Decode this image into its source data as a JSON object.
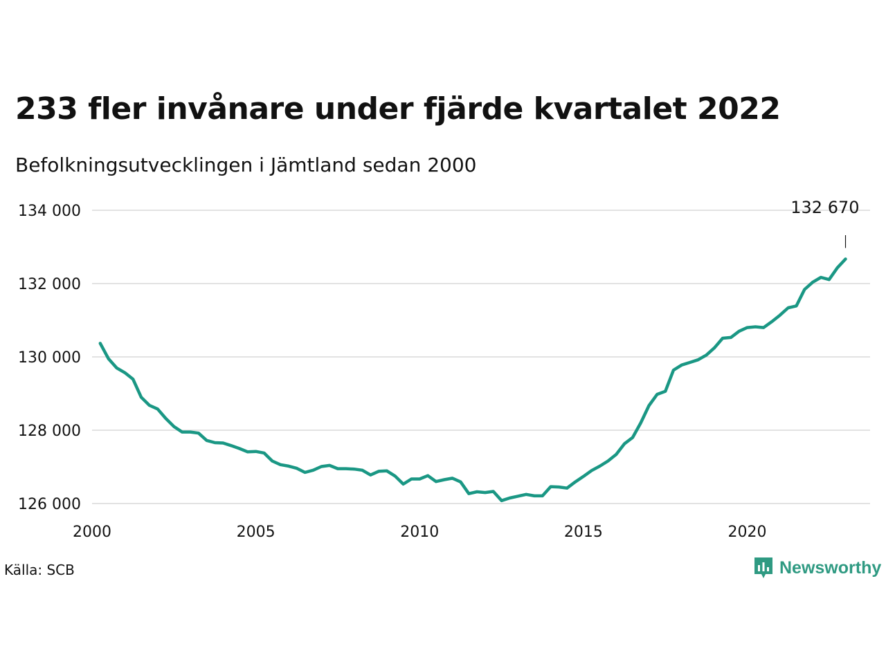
{
  "title": "233 fler invånare under fjärde kvartalet 2022",
  "subtitle": "Befolkningsutvecklingen i Jämtland sedan 2000",
  "source": "Källa: SCB",
  "brand": {
    "name": "Newsworthy",
    "icon": "newsworthy-logo-icon",
    "color": "#2f9a82"
  },
  "colors": {
    "line": "#1a9784",
    "grid": "#e2e2e2",
    "text": "#111111"
  },
  "chart_data": {
    "type": "line",
    "title": "233 fler invånare under fjärde kvartalet 2022",
    "subtitle": "Befolkningsutvecklingen i Jämtland sedan 2000",
    "xlabel": "",
    "ylabel": "",
    "xlim": [
      2000,
      2023.75
    ],
    "ylim": [
      126000,
      134000
    ],
    "grid": true,
    "x_ticks": [
      2000,
      2005,
      2010,
      2015,
      2020
    ],
    "x_tick_labels": [
      "2000",
      "2005",
      "2010",
      "2015",
      "2020"
    ],
    "y_ticks": [
      126000,
      128000,
      130000,
      132000,
      134000
    ],
    "y_tick_labels": [
      "126 000",
      "128 000",
      "130 000",
      "132 000",
      "134 000"
    ],
    "end_label": "132 670",
    "series": [
      {
        "x": [
          2000.25,
          2000.5,
          2000.75,
          2001.0,
          2001.25,
          2001.5,
          2001.75,
          2002.0,
          2002.25,
          2002.5,
          2002.75,
          2003.0,
          2003.25,
          2003.5,
          2003.75,
          2004.0,
          2004.25,
          2004.5,
          2004.75,
          2005.0,
          2005.25,
          2005.5,
          2005.75,
          2006.0,
          2006.25,
          2006.5,
          2006.75,
          2007.0,
          2007.25,
          2007.5,
          2007.75,
          2008.0,
          2008.25,
          2008.5,
          2008.75,
          2009.0,
          2009.25,
          2009.5,
          2009.75,
          2010.0,
          2010.25,
          2010.5,
          2010.75,
          2011.0,
          2011.25,
          2011.5,
          2011.75,
          2012.0,
          2012.25,
          2012.5,
          2012.75,
          2013.0,
          2013.25,
          2013.5,
          2013.75,
          2014.0,
          2014.25,
          2014.5,
          2014.75,
          2015.0,
          2015.25,
          2015.5,
          2015.75,
          2016.0,
          2016.25,
          2016.5,
          2016.75,
          2017.0,
          2017.25,
          2017.5,
          2017.75,
          2018.0,
          2018.25,
          2018.5,
          2018.75,
          2019.0,
          2019.25,
          2019.5,
          2019.75,
          2020.0,
          2020.25,
          2020.5,
          2020.75,
          2021.0,
          2021.25,
          2021.5,
          2021.75,
          2022.0,
          2022.25,
          2022.5,
          2022.75,
          2023.0
        ],
        "values": [
          130370,
          129950,
          129700,
          129570,
          129390,
          128900,
          128680,
          128580,
          128320,
          128100,
          127950,
          127950,
          127920,
          127720,
          127660,
          127650,
          127580,
          127500,
          127410,
          127420,
          127380,
          127160,
          127060,
          127020,
          126960,
          126850,
          126910,
          127010,
          127040,
          126950,
          126950,
          126940,
          126910,
          126780,
          126880,
          126890,
          126750,
          126530,
          126670,
          126670,
          126760,
          126600,
          126650,
          126690,
          126590,
          126270,
          126320,
          126300,
          126330,
          126080,
          126150,
          126200,
          126250,
          126210,
          126210,
          126460,
          126450,
          126420,
          126590,
          126740,
          126900,
          127020,
          127160,
          127340,
          127630,
          127800,
          128200,
          128670,
          128980,
          129060,
          129640,
          129780,
          129850,
          129920,
          130050,
          130250,
          130510,
          130530,
          130700,
          130800,
          130820,
          130800,
          130960,
          131140,
          131340,
          131390,
          131840,
          132040,
          132170,
          132110,
          132430,
          132670
        ]
      }
    ]
  }
}
